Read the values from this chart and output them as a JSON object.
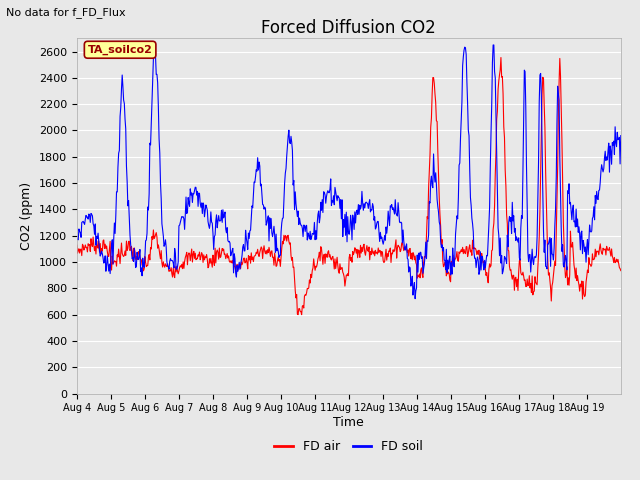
{
  "title": "Forced Diffusion CO2",
  "subtitle": "No data for f_FD_Flux",
  "ylabel": "CO2 (ppm)",
  "xlabel": "Time",
  "ylim": [
    0,
    2700
  ],
  "yticks": [
    0,
    200,
    400,
    600,
    800,
    1000,
    1200,
    1400,
    1600,
    1800,
    2000,
    2200,
    2400,
    2600
  ],
  "xtick_labels": [
    "Aug 4",
    "Aug 5",
    "Aug 6",
    "Aug 7",
    "Aug 8",
    "Aug 9",
    "Aug 10",
    "Aug 11",
    "Aug 12",
    "Aug 13",
    "Aug 14",
    "Aug 15",
    "Aug 16",
    "Aug 17",
    "Aug 18",
    "Aug 19"
  ],
  "legend_labels": [
    "FD air",
    "FD soil"
  ],
  "legend_colors": [
    "red",
    "blue"
  ],
  "annotation_text": "TA_soilco2",
  "annotation_color": "#990000",
  "annotation_bg": "#FFFF99",
  "line_red_color": "red",
  "line_blue_color": "blue",
  "bg_color": "#e8e8e8",
  "plot_bg_color": "#e8e8e8",
  "grid_color": "white",
  "title_fontsize": 12,
  "label_fontsize": 9,
  "tick_fontsize": 8
}
